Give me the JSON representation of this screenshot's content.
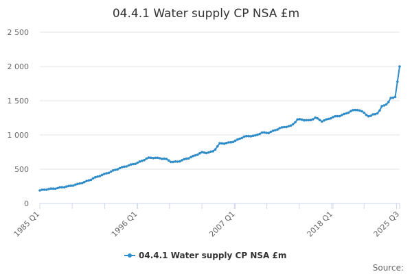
{
  "chart_data": {
    "type": "line",
    "title": "04.4.1 Water supply CP NSA £m",
    "series": [
      {
        "name": "04.4.1 Water supply CP NSA £m",
        "color": "#2f8cc8"
      }
    ],
    "x_tick_labels": [
      "1985 Q1",
      "1996 Q1",
      "2007 Q1",
      "2018 Q1",
      "2025 Q3"
    ],
    "y_tick_labels": [
      "0",
      "500",
      "1 000",
      "1 500",
      "2 000",
      "2 500"
    ],
    "y_ticks": [
      0,
      500,
      1000,
      1500,
      2000,
      2500
    ],
    "ylim": [
      0,
      2500
    ],
    "x_range": [
      "1985 Q1",
      "2025 Q3"
    ],
    "anchors": [
      {
        "t": 0,
        "v": 190
      },
      {
        "t": 4,
        "v": 205
      },
      {
        "t": 8,
        "v": 215
      },
      {
        "t": 12,
        "v": 225
      },
      {
        "t": 16,
        "v": 240
      },
      {
        "t": 20,
        "v": 255
      },
      {
        "t": 24,
        "v": 275
      },
      {
        "t": 28,
        "v": 300
      },
      {
        "t": 32,
        "v": 330
      },
      {
        "t": 36,
        "v": 370
      },
      {
        "t": 40,
        "v": 405
      },
      {
        "t": 44,
        "v": 435
      },
      {
        "t": 48,
        "v": 470
      },
      {
        "t": 52,
        "v": 505
      },
      {
        "t": 56,
        "v": 535
      },
      {
        "t": 60,
        "v": 560
      },
      {
        "t": 64,
        "v": 585
      },
      {
        "t": 68,
        "v": 620
      },
      {
        "t": 72,
        "v": 665
      },
      {
        "t": 76,
        "v": 668
      },
      {
        "t": 80,
        "v": 660
      },
      {
        "t": 84,
        "v": 650
      },
      {
        "t": 88,
        "v": 605
      },
      {
        "t": 92,
        "v": 610
      },
      {
        "t": 96,
        "v": 640
      },
      {
        "t": 100,
        "v": 670
      },
      {
        "t": 104,
        "v": 705
      },
      {
        "t": 108,
        "v": 745
      },
      {
        "t": 112,
        "v": 740
      },
      {
        "t": 116,
        "v": 765
      },
      {
        "t": 120,
        "v": 875
      },
      {
        "t": 124,
        "v": 880
      },
      {
        "t": 128,
        "v": 895
      },
      {
        "t": 132,
        "v": 930
      },
      {
        "t": 136,
        "v": 975
      },
      {
        "t": 140,
        "v": 985
      },
      {
        "t": 144,
        "v": 990
      },
      {
        "t": 148,
        "v": 1035
      },
      {
        "t": 152,
        "v": 1030
      },
      {
        "t": 156,
        "v": 1060
      },
      {
        "t": 160,
        "v": 1100
      },
      {
        "t": 164,
        "v": 1120
      },
      {
        "t": 168,
        "v": 1135
      },
      {
        "t": 172,
        "v": 1230
      },
      {
        "t": 176,
        "v": 1220
      },
      {
        "t": 180,
        "v": 1210
      },
      {
        "t": 184,
        "v": 1255
      },
      {
        "t": 188,
        "v": 1200
      },
      {
        "t": 192,
        "v": 1230
      },
      {
        "t": 196,
        "v": 1265
      },
      {
        "t": 200,
        "v": 1280
      },
      {
        "t": 204,
        "v": 1310
      },
      {
        "t": 208,
        "v": 1355
      },
      {
        "t": 212,
        "v": 1370
      },
      {
        "t": 216,
        "v": 1330
      },
      {
        "t": 220,
        "v": 1260
      },
      {
        "t": 222,
        "v": 1300
      },
      {
        "t": 226,
        "v": 1320
      },
      {
        "t": 228,
        "v": 1420
      },
      {
        "t": 230,
        "v": 1440
      },
      {
        "t": 232,
        "v": 1450
      },
      {
        "t": 234,
        "v": 1540
      },
      {
        "t": 236,
        "v": 1550
      },
      {
        "t": 238,
        "v": 1560
      },
      {
        "t": 239,
        "v": 1980
      },
      {
        "t": 240,
        "v": 2000
      }
    ],
    "legend": {
      "label": "04.4.1 Water supply CP NSA £m",
      "position": "bottom-center"
    },
    "grid": true
  },
  "footer": {
    "source_label": "Source:"
  }
}
